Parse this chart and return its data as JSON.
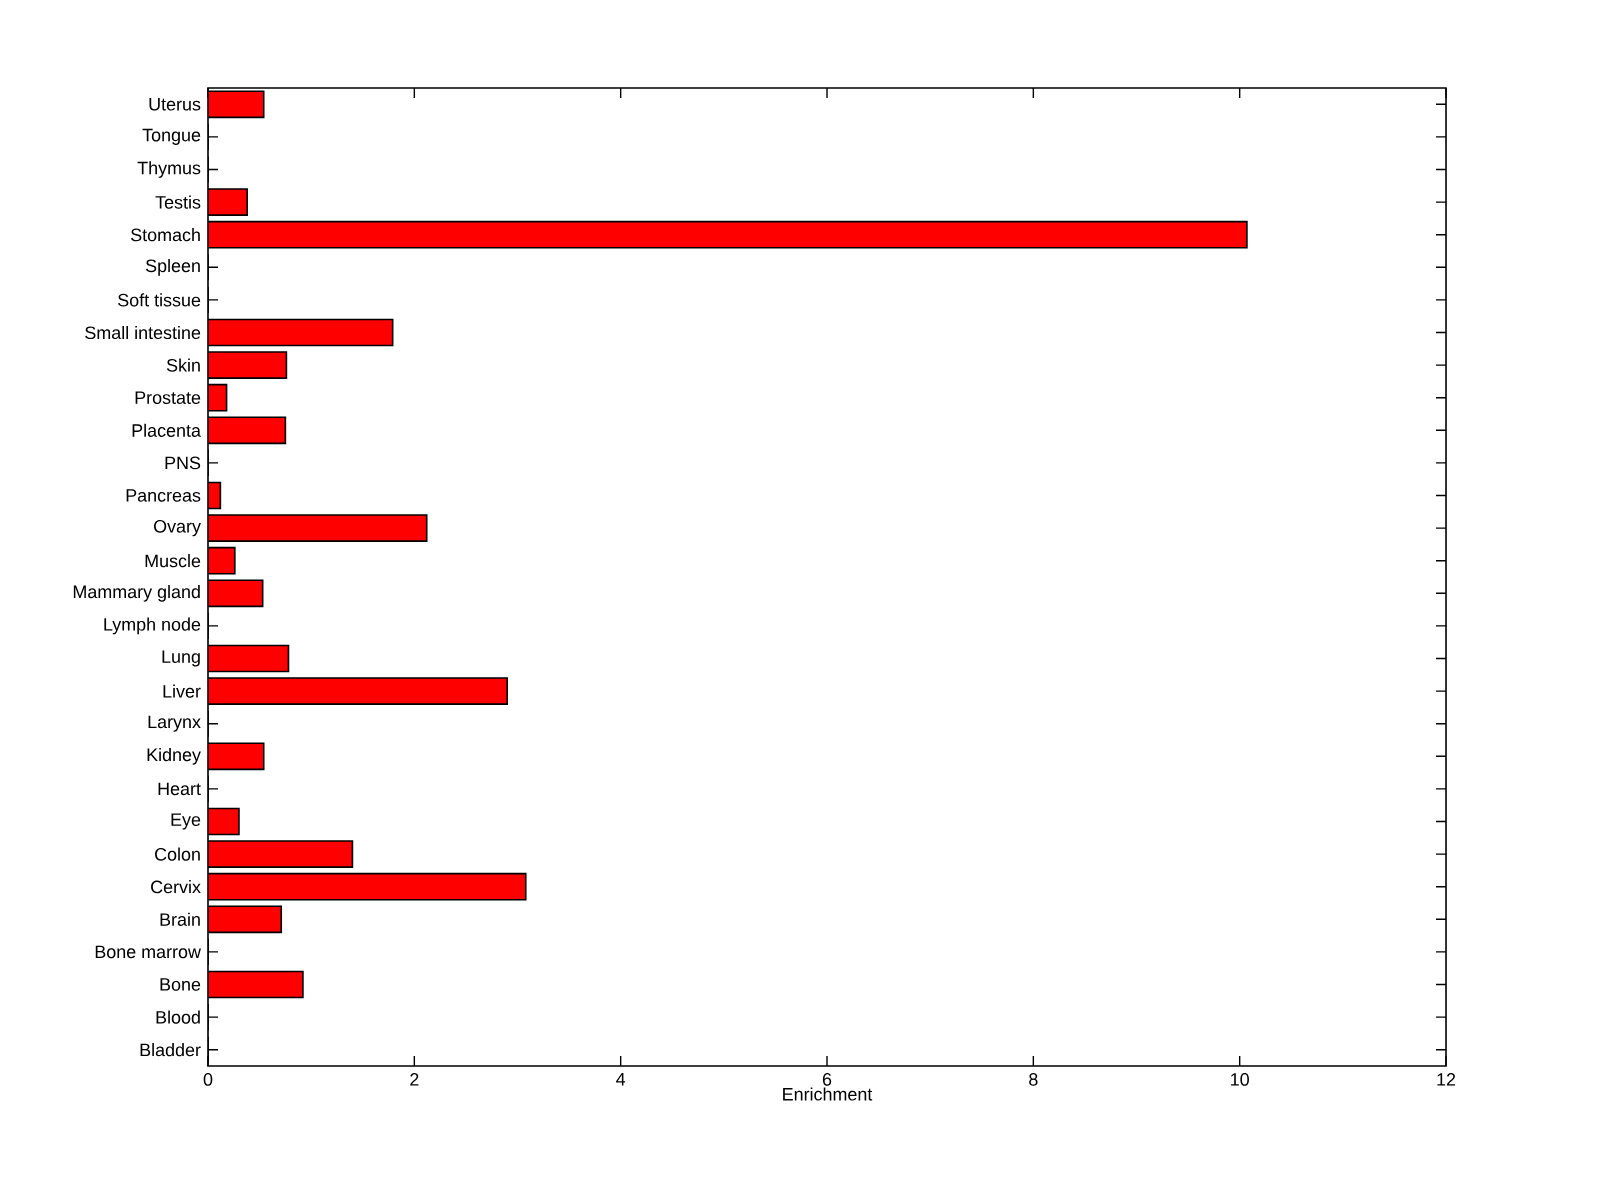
{
  "chart_data": {
    "type": "bar",
    "orientation": "horizontal",
    "xlabel": "Enrichment",
    "categories": [
      "Uterus",
      "Tongue",
      "Thymus",
      "Testis",
      "Stomach",
      "Spleen",
      "Soft tissue",
      "Small intestine",
      "Skin",
      "Prostate",
      "Placenta",
      "PNS",
      "Pancreas",
      "Ovary",
      "Muscle",
      "Mammary gland",
      "Lymph node",
      "Lung",
      "Liver",
      "Larynx",
      "Kidney",
      "Heart",
      "Eye",
      "Colon",
      "Cervix",
      "Brain",
      "Bone marrow",
      "Bone",
      "Blood",
      "Bladder"
    ],
    "values": [
      0.54,
      0,
      0,
      0.38,
      10.07,
      0,
      0,
      1.79,
      0.76,
      0.18,
      0.75,
      0,
      0.12,
      2.12,
      0.26,
      0.53,
      0,
      0.78,
      2.9,
      0,
      0.54,
      0,
      0.3,
      1.4,
      3.08,
      0.71,
      0,
      0.92,
      0,
      0
    ],
    "color": "#ff0000",
    "xlim": [
      0,
      12
    ],
    "xticks": [
      0,
      2,
      4,
      6,
      8,
      10,
      12
    ]
  }
}
